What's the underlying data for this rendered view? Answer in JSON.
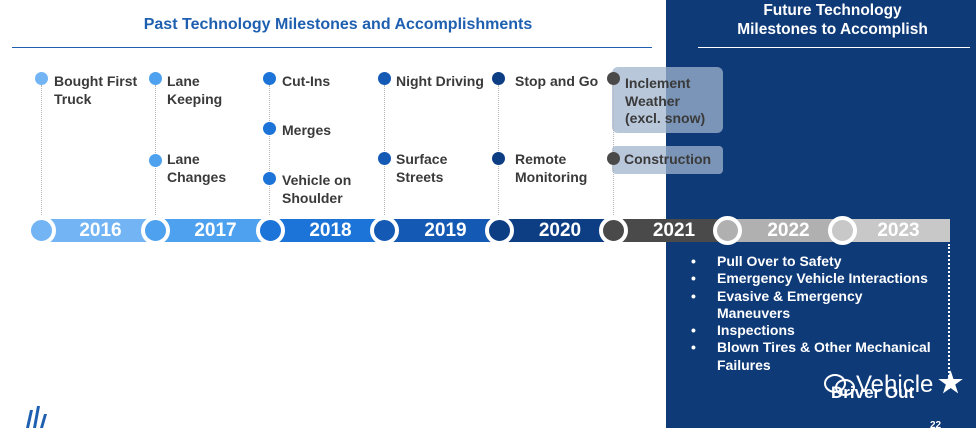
{
  "past_title": "Past Technology Milestones and Accomplishments",
  "future_title_line1": "Future Technology",
  "future_title_line2": "Milestones to Accomplish",
  "years": [
    "2016",
    "2017",
    "2018",
    "2019",
    "2020",
    "2021",
    "2022",
    "2023"
  ],
  "milestones": {
    "y2016": [
      "Bought First",
      "Truck"
    ],
    "y2017a": [
      "Lane",
      "Keeping"
    ],
    "y2017b": [
      "Lane",
      "Changes"
    ],
    "y2018a": "Cut-Ins",
    "y2018b": "Merges",
    "y2018c": [
      "Vehicle on",
      "Shoulder"
    ],
    "y2019a": "Night Driving",
    "y2019b": [
      "Surface",
      "Streets"
    ],
    "y2020a": "Stop and Go",
    "y2020b": [
      "Remote",
      "Monitoring"
    ],
    "y2021a": [
      "Inclement",
      "Weather",
      "(excl. snow)"
    ],
    "y2021b": "Construction"
  },
  "future_items": [
    "Pull Over to Safety",
    "Emergency Vehicle Interactions",
    "Evasive & Emergency",
    "Maneuvers",
    "Inspections",
    "Blown Tires & Other Mechanical",
    "Failures"
  ],
  "future_end_label": "Driver Out",
  "watermark_text": "Vehicle",
  "page_number": "22",
  "colors": {
    "navy_panel": "#0e3a78",
    "title_blue": "#1f5fb0",
    "y2016": "#72b4f4",
    "y2017": "#4ea1ee",
    "y2018": "#1c73d8",
    "y2019": "#1459b4",
    "y2020": "#0d3e84",
    "y2021": "#4a4a4a",
    "future_grey": "#b0b0b0"
  }
}
